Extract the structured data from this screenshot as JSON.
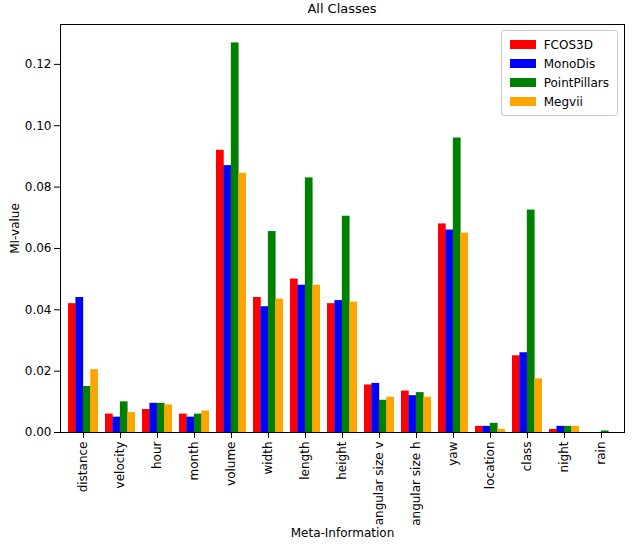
{
  "chart_data": {
    "type": "bar",
    "title": "All Classes",
    "x_label": "Meta-Information",
    "y_label": "MI-value",
    "categories": [
      "distance",
      "velocity",
      "hour",
      "month",
      "volume",
      "width",
      "length",
      "height",
      "angular size v",
      "angular size h",
      "yaw",
      "location",
      "class",
      "night",
      "rain"
    ],
    "series": [
      {
        "name": "FCOS3D",
        "color": "#ff0000",
        "values": [
          0.042,
          0.006,
          0.0075,
          0.006,
          0.092,
          0.044,
          0.05,
          0.042,
          0.0155,
          0.0135,
          0.068,
          0.002,
          0.025,
          0.001,
          0
        ]
      },
      {
        "name": "MonoDis",
        "color": "#0000ff",
        "values": [
          0.044,
          0.005,
          0.0095,
          0.005,
          0.087,
          0.041,
          0.048,
          0.043,
          0.016,
          0.012,
          0.066,
          0.002,
          0.026,
          0.002,
          0
        ]
      },
      {
        "name": "PointPillars",
        "color": "#008000",
        "values": [
          0.015,
          0.01,
          0.0095,
          0.006,
          0.127,
          0.0655,
          0.083,
          0.0705,
          0.0105,
          0.013,
          0.096,
          0.003,
          0.0725,
          0.002,
          0.0005
        ]
      },
      {
        "name": "Megvii",
        "color": "#ffa500",
        "values": [
          0.0205,
          0.0065,
          0.009,
          0.007,
          0.0845,
          0.0435,
          0.048,
          0.0425,
          0.0115,
          0.0115,
          0.065,
          0.001,
          0.0175,
          0.002,
          0
        ]
      }
    ],
    "ylim": [
      0,
      0.133
    ],
    "yticks": [
      {
        "value": 0,
        "label": "0.00"
      },
      {
        "value": 0.02,
        "label": "0.02"
      },
      {
        "value": 0.04,
        "label": "0.04"
      },
      {
        "value": 0.06,
        "label": "0.06"
      },
      {
        "value": 0.08,
        "label": "0.08"
      },
      {
        "value": 0.1,
        "label": "0.10"
      },
      {
        "value": 0.12,
        "label": "0.12"
      }
    ],
    "legend": "upper right",
    "grid": false
  }
}
